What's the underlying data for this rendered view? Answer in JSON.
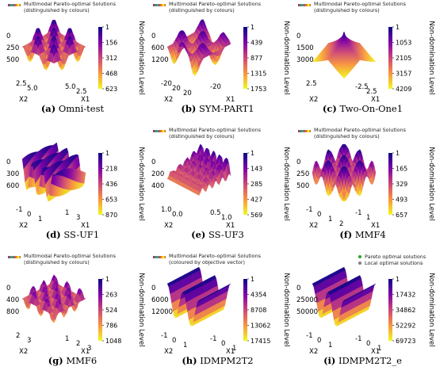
{
  "colors": {
    "cb_top": "#0d0887",
    "cb_mid1": "#7e03a8",
    "cb_mid2": "#cc4778",
    "cb_mid3": "#f89540",
    "cb_bottom": "#f0f921"
  },
  "chart_data": [
    {
      "type": "surface3d",
      "caption_letter": "(a)",
      "caption_name": "Omni-test",
      "legend": [
        "Multimodal Pareto-optimal Solutions",
        "(distinguished by colours)"
      ],
      "colorbar_label": "Non-domination Level",
      "colorbar_ticks": [
        "1",
        "156",
        "312",
        "468",
        "623"
      ],
      "colorbar_range": [
        1,
        623
      ],
      "z_ticks": [
        "0",
        "250",
        "500"
      ],
      "x1_label": "X1",
      "x1_ticks": [
        "5.0",
        "2.5"
      ],
      "x2_label": "X2",
      "x2_ticks": [
        "2.5",
        "5.0"
      ]
    },
    {
      "type": "surface3d",
      "caption_letter": "(b)",
      "caption_name": "SYM-PART1",
      "legend": [
        "Multimodal Pareto-optimal Solutions",
        "(distinguished by colours)"
      ],
      "colorbar_label": "Non-domination Level",
      "colorbar_ticks": [
        "1",
        "439",
        "877",
        "1315",
        "1753"
      ],
      "colorbar_range": [
        1,
        1753
      ],
      "z_ticks": [
        "0",
        "600",
        "1200"
      ],
      "x1_label": "X1",
      "x1_ticks": [
        "-20"
      ],
      "x2_label": "X2",
      "x2_ticks": [
        "-20",
        "20",
        "20"
      ]
    },
    {
      "type": "surface3d",
      "caption_letter": "(c)",
      "caption_name": "Two-On-One1",
      "legend": [
        "Multimodal Pareto-optimal Solutions",
        "(distinguished by colours)"
      ],
      "colorbar_label": "Non-domination Level",
      "colorbar_ticks": [
        "1",
        "1053",
        "2105",
        "3157",
        "4209"
      ],
      "colorbar_range": [
        1,
        4209
      ],
      "z_ticks": [
        "0",
        "1500",
        "3000"
      ],
      "x1_label": "X1",
      "x1_ticks": [
        "-2.5",
        "2.5"
      ],
      "x2_label": "X2",
      "x2_ticks": [
        "2.5"
      ]
    },
    {
      "type": "surface3d",
      "caption_letter": "(d)",
      "caption_name": "SS-UF1",
      "legend": [],
      "colorbar_label": "Non-domination Level",
      "colorbar_ticks": [
        "1",
        "218",
        "436",
        "653",
        "870"
      ],
      "colorbar_range": [
        1,
        870
      ],
      "z_ticks": [
        "0",
        "300",
        "600"
      ],
      "x1_label": "X1",
      "x1_ticks": [
        "1",
        "3"
      ],
      "x2_label": "X2",
      "x2_ticks": [
        "-1",
        "0",
        "1"
      ]
    },
    {
      "type": "surface3d",
      "caption_letter": "(e)",
      "caption_name": "SS-UF3",
      "legend": [
        "Multimodal Pareto-optimal Solutions",
        "(distinguished by colours)"
      ],
      "colorbar_label": "Non-domination Level",
      "colorbar_ticks": [
        "1",
        "143",
        "285",
        "427",
        "569"
      ],
      "colorbar_range": [
        1,
        569
      ],
      "z_ticks": [
        "0",
        "200",
        "400"
      ],
      "x1_label": "X1",
      "x1_ticks": [
        "0.5",
        "1.0"
      ],
      "x2_label": "X2",
      "x2_ticks": [
        "1.0",
        "0.0"
      ]
    },
    {
      "type": "surface3d",
      "caption_letter": "(f)",
      "caption_name": "MMF4",
      "legend": [
        "Multimodal Pareto-optimal Solutions",
        "(distinguished by colours)"
      ],
      "colorbar_label": "Non-domination Level",
      "colorbar_ticks": [
        "1",
        "165",
        "329",
        "493",
        "657"
      ],
      "colorbar_range": [
        1,
        657
      ],
      "z_ticks": [
        "0",
        "250",
        "500"
      ],
      "x1_label": "X1",
      "x1_ticks": [
        "-1",
        "1"
      ],
      "x2_label": "X2",
      "x2_ticks": [
        "-1",
        "0",
        "1",
        "2"
      ]
    },
    {
      "type": "surface3d",
      "caption_letter": "(g)",
      "caption_name": "MMF6",
      "legend": [
        "Multimodal Pareto-optimal Solutions",
        "(distinguished by colours)"
      ],
      "colorbar_label": "Non-domination Level",
      "colorbar_ticks": [
        "1",
        "263",
        "524",
        "786",
        "1048"
      ],
      "colorbar_range": [
        1,
        1048
      ],
      "z_ticks": [
        "0",
        "400",
        "800"
      ],
      "x1_label": "X1",
      "x1_ticks": [
        "1",
        "2",
        "3"
      ],
      "x2_label": "X2",
      "x2_ticks": [
        "2",
        "3"
      ]
    },
    {
      "type": "surface3d",
      "caption_letter": "(h)",
      "caption_name": "IDMPM2T2",
      "legend": [
        "Multimodal Pareto-optimal Solutions",
        "(coloured by objective vector)"
      ],
      "colorbar_label": "Non-domination Level",
      "colorbar_ticks": [
        "1",
        "4354",
        "8708",
        "13062",
        "17415"
      ],
      "colorbar_range": [
        1,
        17415
      ],
      "z_ticks": [
        "0",
        "6000",
        "12000"
      ],
      "x1_label": "X1",
      "x1_ticks": [
        "-1",
        "0",
        "1"
      ],
      "x2_label": "X2",
      "x2_ticks": [
        "-1",
        "0",
        "1"
      ]
    },
    {
      "type": "surface3d",
      "caption_letter": "(i)",
      "caption_name": "IDMPM2T2_e",
      "legend2": [
        {
          "label": "Pareto optimal solutions",
          "color": "#2ca02c"
        },
        {
          "label": "Local optimal solutions",
          "color": "#7f7f7f"
        }
      ],
      "colorbar_label": "Non-domination Level",
      "colorbar_ticks": [
        "1",
        "17432",
        "34862",
        "52292",
        "69723"
      ],
      "colorbar_range": [
        1,
        69723
      ],
      "z_ticks": [
        "0",
        "25000",
        "50000"
      ],
      "x1_label": "X1",
      "x1_ticks": [
        "-1",
        "0",
        "1"
      ],
      "x2_label": "X2",
      "x2_ticks": [
        "-1",
        "0",
        "1"
      ]
    }
  ]
}
